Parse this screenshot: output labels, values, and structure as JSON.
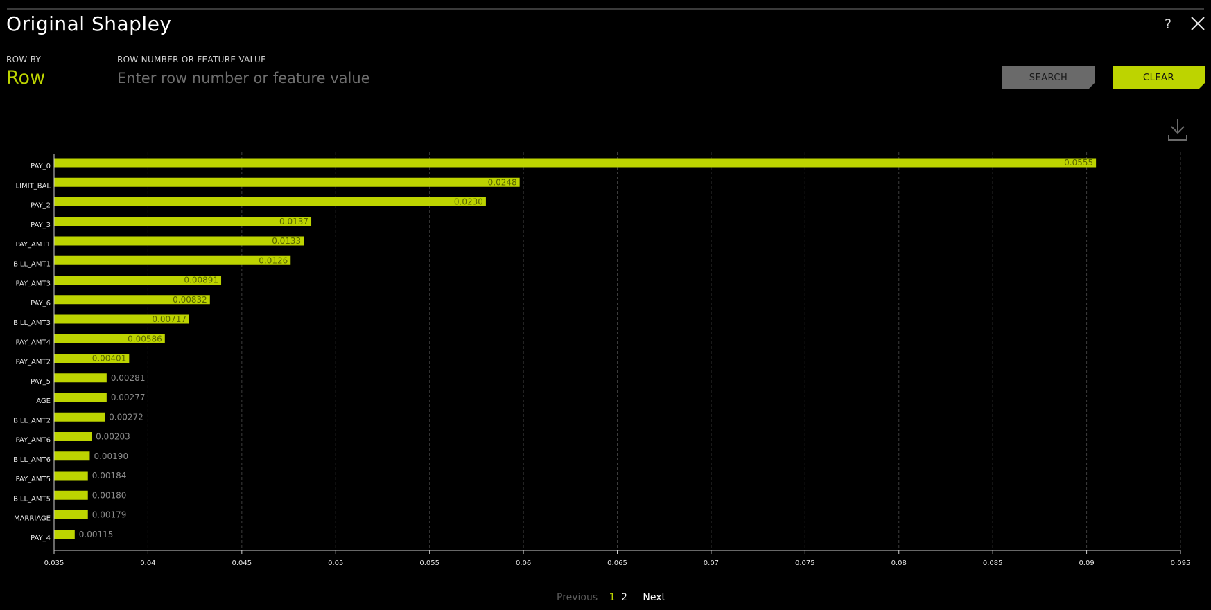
{
  "window": {
    "title": "Original Shapley"
  },
  "controls": {
    "row_by_label": "ROW BY",
    "row_by_value": "Row",
    "search_label": "ROW NUMBER OR FEATURE VALUE",
    "search_placeholder": "Enter row number or feature value",
    "search_value": "",
    "search_button": "SEARCH",
    "clear_button": "CLEAR"
  },
  "icons": {
    "help": "help-icon",
    "close": "close-icon",
    "download": "download-icon"
  },
  "colors": {
    "accent": "#bdd400",
    "background": "#000000",
    "muted_button": "#6a6a6a"
  },
  "chart_data": {
    "type": "bar",
    "orientation": "horizontal",
    "categories": [
      "PAY_0",
      "LIMIT_BAL",
      "PAY_2",
      "PAY_3",
      "PAY_AMT1",
      "BILL_AMT1",
      "PAY_AMT3",
      "PAY_6",
      "BILL_AMT3",
      "PAY_AMT4",
      "PAY_AMT2",
      "PAY_5",
      "AGE",
      "BILL_AMT2",
      "PAY_AMT6",
      "BILL_AMT6",
      "PAY_AMT5",
      "BILL_AMT5",
      "MARRIAGE",
      "PAY_4"
    ],
    "values": [
      0.0555,
      0.0248,
      0.023,
      0.0137,
      0.0133,
      0.0126,
      0.00891,
      0.00832,
      0.00717,
      0.00586,
      0.00401,
      0.00281,
      0.00277,
      0.00272,
      0.00203,
      0.0019,
      0.00184,
      0.0018,
      0.00179,
      0.00115
    ],
    "value_labels": [
      "0.0555",
      "0.0248",
      "0.0230",
      "0.0137",
      "0.0133",
      "0.0126",
      "0.00891",
      "0.00832",
      "0.00717",
      "0.00586",
      "0.00401",
      "0.00281",
      "0.00277",
      "0.00272",
      "0.00203",
      "0.00190",
      "0.00184",
      "0.00180",
      "0.00179",
      "0.00115"
    ],
    "bar_ends": [
      0.0905,
      0.0598,
      0.058,
      0.0487,
      0.0483,
      0.0476,
      0.0439,
      0.0433,
      0.0422,
      0.0409,
      0.039,
      0.0378,
      0.0378,
      0.0377,
      0.037,
      0.0369,
      0.0368,
      0.0368,
      0.0368,
      0.0361
    ],
    "xlim": [
      0.035,
      0.095
    ],
    "xticks": [
      "0.035",
      "0.04",
      "0.045",
      "0.05",
      "0.055",
      "0.06",
      "0.065",
      "0.07",
      "0.075",
      "0.08",
      "0.085",
      "0.09",
      "0.095"
    ],
    "grid": true,
    "grid_style": "dashed vertical",
    "bar_color": "#bdd400"
  },
  "pagination": {
    "previous": "Previous",
    "pages": [
      "1",
      "2"
    ],
    "current": "1",
    "next": "Next"
  }
}
